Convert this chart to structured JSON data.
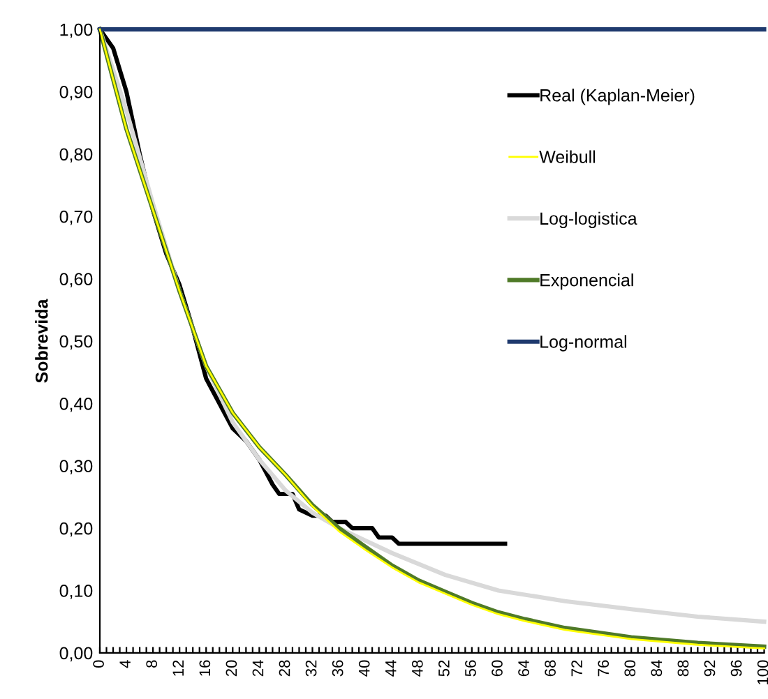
{
  "chart_data": {
    "type": "line",
    "ylabel": "Sobrevida",
    "legend": "top right",
    "grid": false,
    "marker": "none",
    "line_style": "solid",
    "xlim": [
      0,
      100
    ],
    "xticks": [
      0,
      {
        "value": 1,
        "label": null
      },
      {
        "value": 2,
        "label": null
      },
      {
        "value": 3,
        "label": null
      },
      4,
      {
        "value": 5,
        "label": null
      },
      {
        "value": 6,
        "label": null
      },
      {
        "value": 7,
        "label": null
      },
      8,
      {
        "value": 9,
        "label": null
      },
      {
        "value": 10,
        "label": null
      },
      {
        "value": 11,
        "label": null
      },
      12,
      {
        "value": 13,
        "label": null
      },
      {
        "value": 14,
        "label": null
      },
      {
        "value": 15,
        "label": null
      },
      16,
      {
        "value": 17,
        "label": null
      },
      {
        "value": 18,
        "label": null
      },
      {
        "value": 19,
        "label": null
      },
      20,
      {
        "value": 21,
        "label": null
      },
      {
        "value": 22,
        "label": null
      },
      {
        "value": 23,
        "label": null
      },
      24,
      {
        "value": 25,
        "label": null
      },
      {
        "value": 26,
        "label": null
      },
      {
        "value": 27,
        "label": null
      },
      28,
      {
        "value": 29,
        "label": null
      },
      {
        "value": 30,
        "label": null
      },
      {
        "value": 31,
        "label": null
      },
      32,
      {
        "value": 33,
        "label": null
      },
      {
        "value": 34,
        "label": null
      },
      {
        "value": 35,
        "label": null
      },
      36,
      {
        "value": 37,
        "label": null
      },
      {
        "value": 38,
        "label": null
      },
      {
        "value": 39,
        "label": null
      },
      40,
      {
        "value": 41,
        "label": null
      },
      {
        "value": 42,
        "label": null
      },
      {
        "value": 43,
        "label": null
      },
      44,
      {
        "value": 45,
        "label": null
      },
      {
        "value": 46,
        "label": null
      },
      {
        "value": 47,
        "label": null
      },
      48,
      {
        "value": 49,
        "label": null
      },
      {
        "value": 50,
        "label": null
      },
      {
        "value": 51,
        "label": null
      },
      52,
      {
        "value": 53,
        "label": null
      },
      {
        "value": 54,
        "label": null
      },
      {
        "value": 55,
        "label": null
      },
      56,
      {
        "value": 57,
        "label": null
      },
      {
        "value": 58,
        "label": null
      },
      {
        "value": 59,
        "label": null
      },
      60,
      {
        "value": 61,
        "label": null
      },
      {
        "value": 62,
        "label": null
      },
      {
        "value": 63,
        "label": null
      },
      64,
      {
        "value": 65,
        "label": null
      },
      {
        "value": 66,
        "label": null
      },
      {
        "value": 67,
        "label": null
      },
      68,
      {
        "value": 69,
        "label": null
      },
      {
        "value": 70,
        "label": null
      },
      {
        "value": 71,
        "label": null
      },
      72,
      {
        "value": 73,
        "label": null
      },
      {
        "value": 74,
        "label": null
      },
      {
        "value": 75,
        "label": null
      },
      76,
      {
        "value": 77,
        "label": null
      },
      {
        "value": 78,
        "label": null
      },
      {
        "value": 79,
        "label": null
      },
      80,
      {
        "value": 81,
        "label": null
      },
      {
        "value": 82,
        "label": null
      },
      {
        "value": 83,
        "label": null
      },
      84,
      {
        "value": 85,
        "label": null
      },
      {
        "value": 86,
        "label": null
      },
      {
        "value": 87,
        "label": null
      },
      88,
      {
        "value": 89,
        "label": null
      },
      {
        "value": 90,
        "label": null
      },
      {
        "value": 91,
        "label": null
      },
      92,
      {
        "value": 93,
        "label": null
      },
      {
        "value": 94,
        "label": null
      },
      {
        "value": 95,
        "label": null
      },
      96,
      {
        "value": 97,
        "label": null
      },
      {
        "value": 98,
        "label": null
      },
      {
        "value": 99,
        "label": null
      },
      100
    ],
    "ylim": [
      0,
      1
    ],
    "yticks": [
      {
        "value": 0,
        "label": "0,00"
      },
      {
        "value": 0.1,
        "label": "0,10"
      },
      {
        "value": 0.2,
        "label": "0,20"
      },
      {
        "value": 0.3,
        "label": "0,30"
      },
      {
        "value": 0.4,
        "label": "0,40"
      },
      {
        "value": 0.5,
        "label": "0,50"
      },
      {
        "value": 0.6,
        "label": "0,60"
      },
      {
        "value": 0.7,
        "label": "0,70"
      },
      {
        "value": 0.8,
        "label": "0,80"
      },
      {
        "value": 0.9,
        "label": "0,90"
      },
      {
        "value": 1,
        "label": "1,00"
      }
    ],
    "series": [
      {
        "name": "Real (Kaplan-Meier)",
        "color": "#000000",
        "x": [
          0,
          2,
          4,
          6,
          8,
          10,
          12,
          14,
          16,
          18,
          20,
          22,
          24,
          26,
          27,
          29,
          30,
          32,
          34,
          35,
          37,
          38,
          41,
          42,
          44,
          45,
          61
        ],
        "values": [
          1.0,
          0.97,
          0.9,
          0.8,
          0.71,
          0.64,
          0.59,
          0.52,
          0.44,
          0.4,
          0.36,
          0.34,
          0.31,
          0.27,
          0.255,
          0.255,
          0.23,
          0.22,
          0.22,
          0.21,
          0.21,
          0.2,
          0.2,
          0.185,
          0.185,
          0.175,
          0.175
        ]
      },
      {
        "name": "Weibull",
        "color": "#ffff00",
        "x": [
          0,
          4,
          8,
          12,
          16,
          20,
          24,
          28,
          32,
          36,
          40,
          44,
          48,
          52,
          56,
          60,
          64,
          70,
          80,
          90,
          100
        ],
        "values": [
          1.0,
          0.84,
          0.71,
          0.58,
          0.46,
          0.385,
          0.33,
          0.285,
          0.235,
          0.195,
          0.165,
          0.137,
          0.113,
          0.095,
          0.077,
          0.062,
          0.051,
          0.037,
          0.022,
          0.013,
          0.007
        ]
      },
      {
        "name": "Log-logistica",
        "color": "#d9d9d9",
        "x": [
          0,
          4,
          8,
          12,
          16,
          20,
          24,
          28,
          32,
          36,
          40,
          44,
          52,
          60,
          70,
          80,
          90,
          100
        ],
        "values": [
          1.0,
          0.87,
          0.72,
          0.58,
          0.46,
          0.37,
          0.31,
          0.26,
          0.225,
          0.2,
          0.18,
          0.16,
          0.125,
          0.1,
          0.083,
          0.07,
          0.058,
          0.05
        ]
      },
      {
        "name": "Exponencial",
        "color": "#4f7a28",
        "x": [
          0,
          4,
          8,
          12,
          16,
          20,
          24,
          28,
          32,
          36,
          40,
          44,
          48,
          52,
          56,
          60,
          64,
          70,
          80,
          90,
          100
        ],
        "values": [
          1.0,
          0.84,
          0.71,
          0.58,
          0.46,
          0.385,
          0.33,
          0.285,
          0.237,
          0.2,
          0.17,
          0.14,
          0.116,
          0.098,
          0.08,
          0.065,
          0.054,
          0.04,
          0.025,
          0.016,
          0.01
        ]
      },
      {
        "name": "Log-normal",
        "color": "#1f3a6e",
        "x": [
          0,
          100
        ],
        "values": [
          1.0,
          1.0
        ]
      }
    ]
  }
}
